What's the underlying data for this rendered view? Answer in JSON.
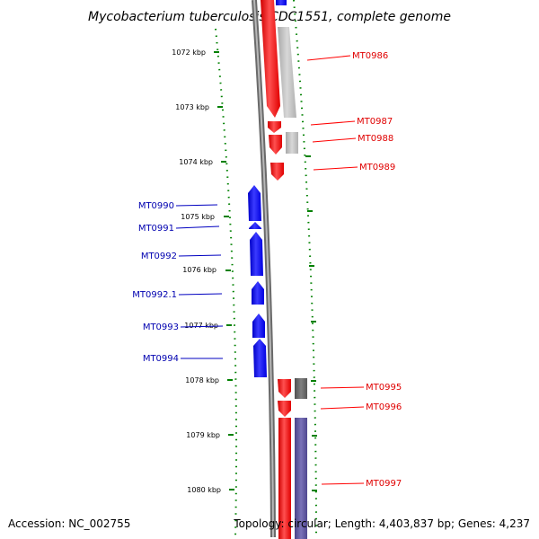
{
  "title": "Mycobacterium tuberculosis CDC1551, complete genome",
  "footer": {
    "accession": "Accession: NC_002755",
    "summary": "Topology: circular; Length: 4,403,837 bp; Genes: 4,237"
  },
  "colors": {
    "forward_strand": "#ff0000",
    "reverse_strand": "#0000ff",
    "ticks": "#008000",
    "backbone": "#808080",
    "shadow_light": "#c0c0c0",
    "shadow_dark": "#606060",
    "shadow_purple": "#5a5296"
  },
  "ticks": [
    {
      "label": "1072 kbp"
    },
    {
      "label": "1073 kbp"
    },
    {
      "label": "1074 kbp"
    },
    {
      "label": "1075 kbp"
    },
    {
      "label": "1076 kbp"
    },
    {
      "label": "1077 kbp"
    },
    {
      "label": "1078 kbp"
    },
    {
      "label": "1079 kbp"
    },
    {
      "label": "1080 kbp"
    }
  ],
  "genes": {
    "forward": [
      {
        "label": "MT0986"
      },
      {
        "label": "MT0987"
      },
      {
        "label": "MT0988"
      },
      {
        "label": "MT0989"
      },
      {
        "label": "MT0995"
      },
      {
        "label": "MT0996"
      },
      {
        "label": "MT0997"
      }
    ],
    "reverse": [
      {
        "label": "MT0990"
      },
      {
        "label": "MT0991"
      },
      {
        "label": "MT0992"
      },
      {
        "label": "MT0992.1"
      },
      {
        "label": "MT0993"
      },
      {
        "label": "MT0994"
      }
    ]
  }
}
